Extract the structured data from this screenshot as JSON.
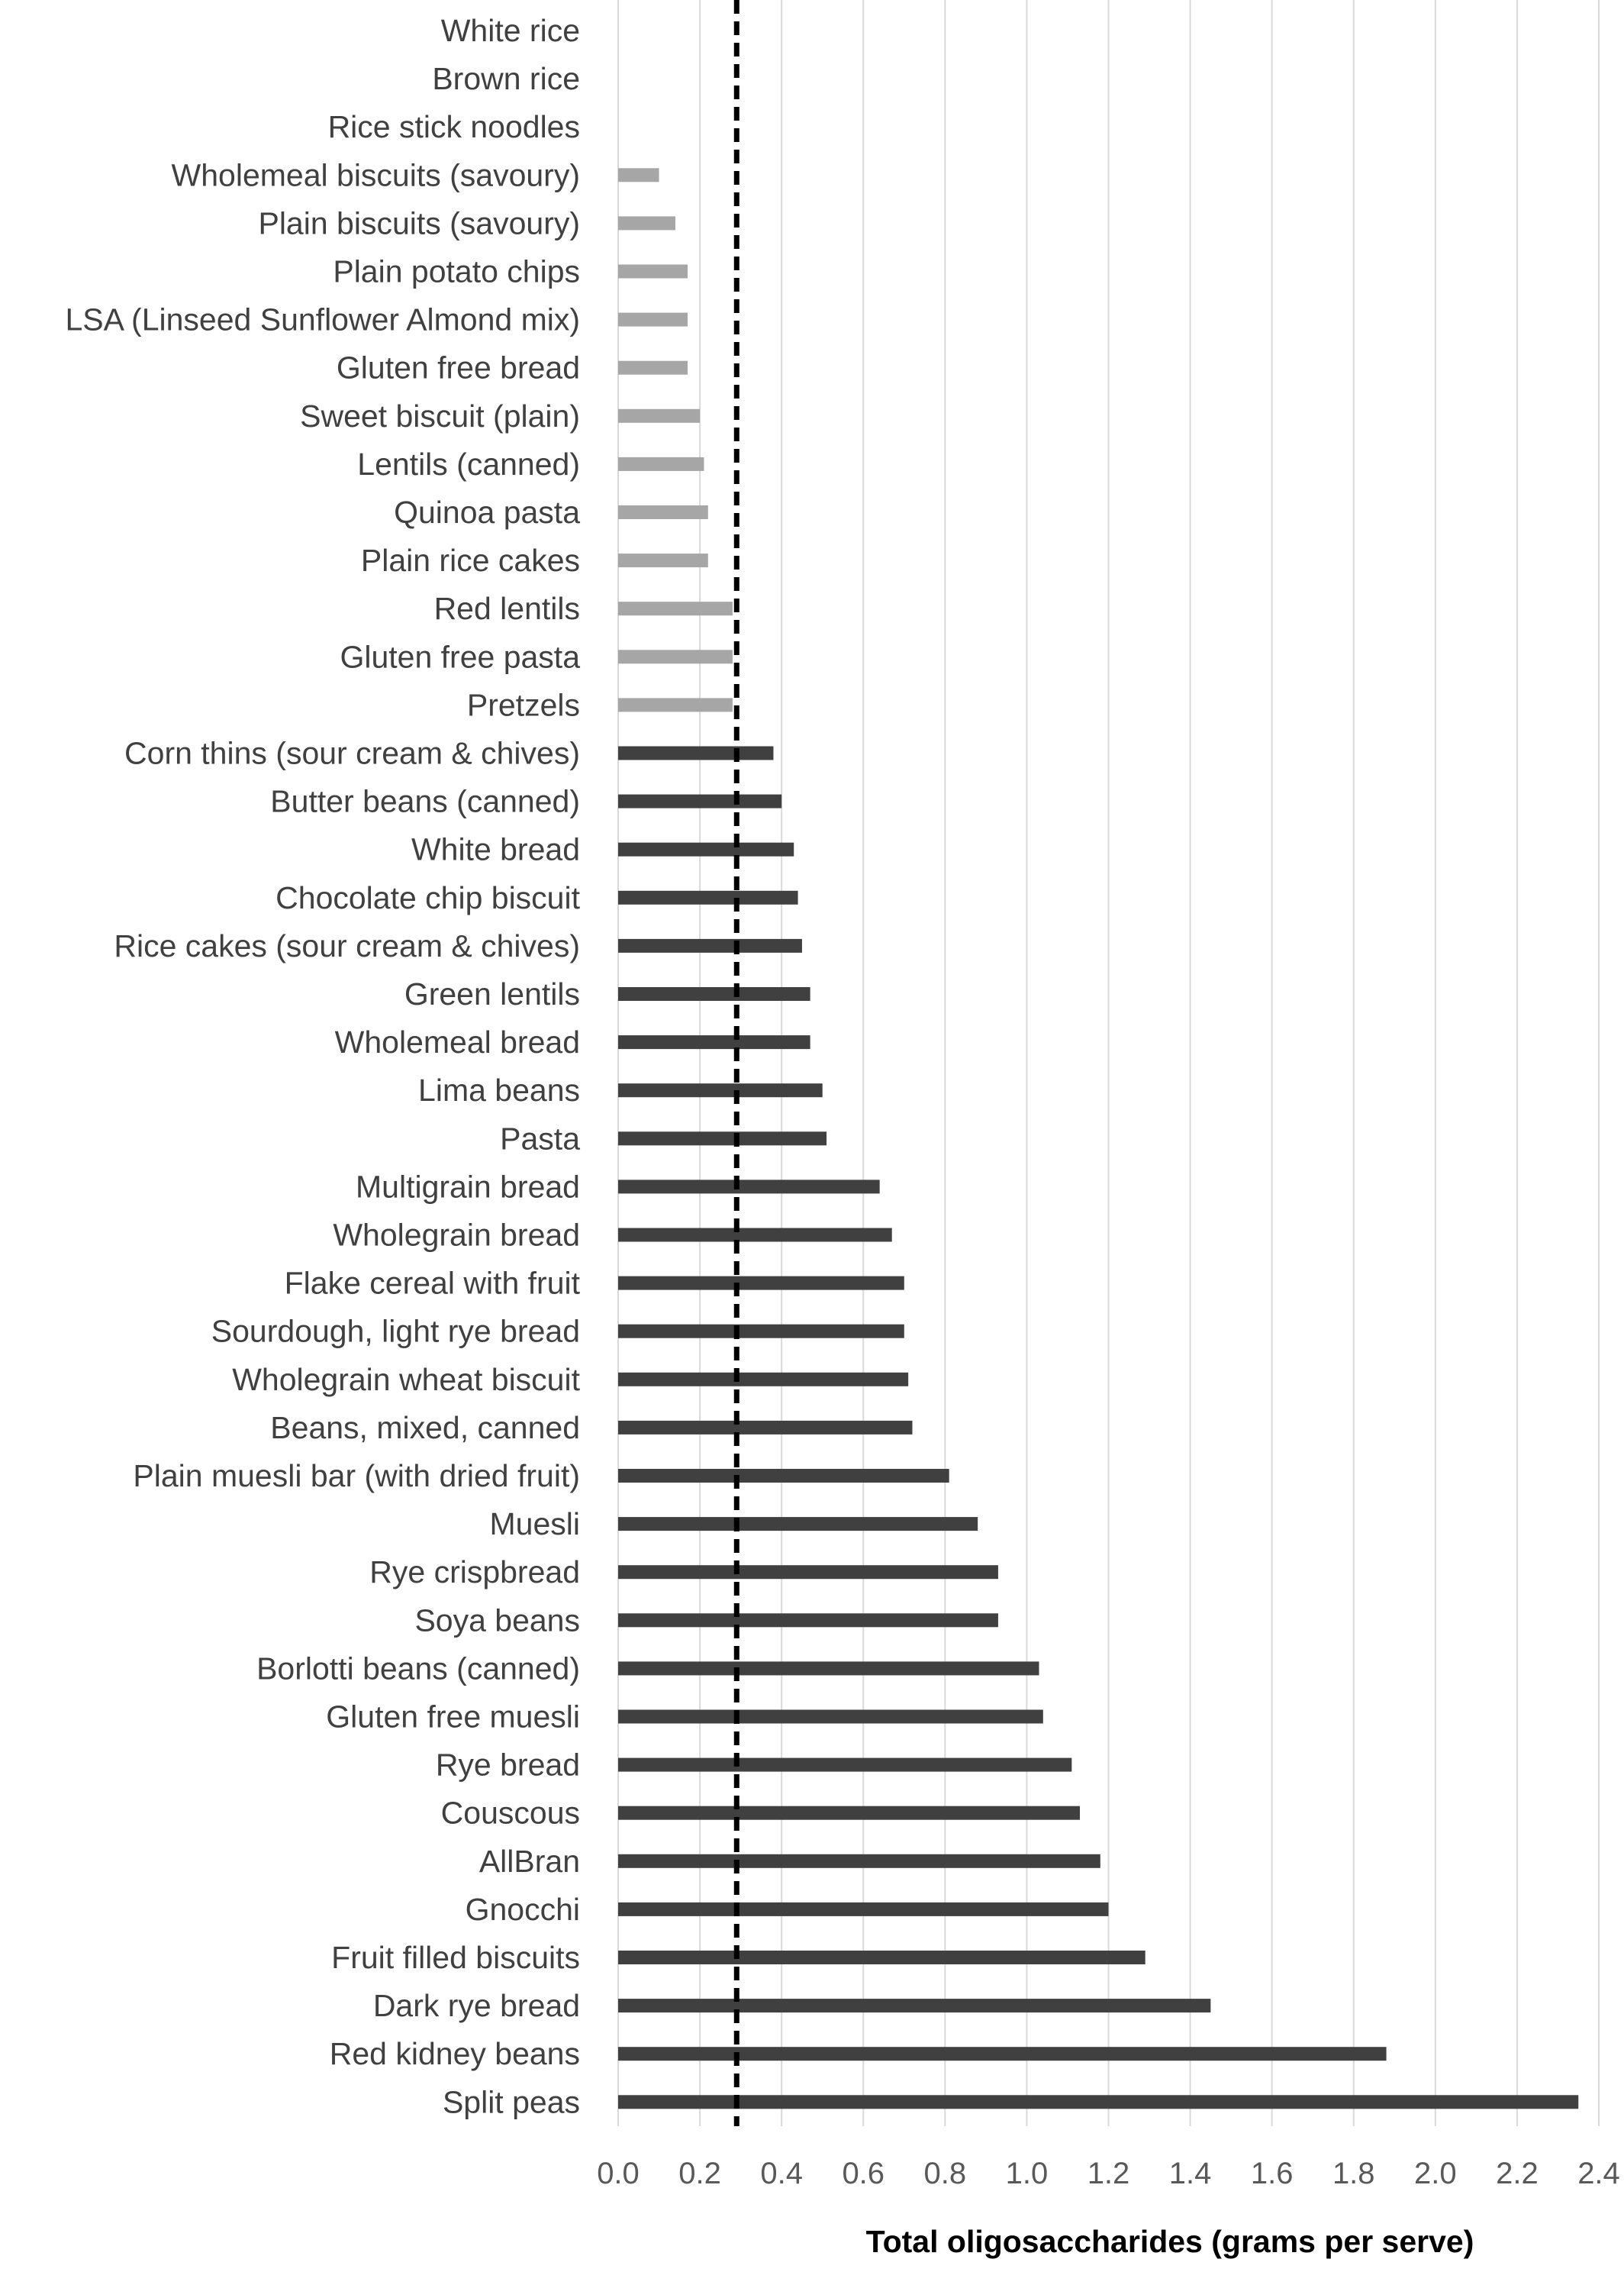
{
  "chart_data": {
    "type": "bar",
    "orientation": "horizontal",
    "title": "",
    "xlabel": "Total oligosaccharides (grams per serve)",
    "ylabel": "",
    "xlim": [
      0,
      2.4
    ],
    "xticks": [
      0.0,
      0.2,
      0.4,
      0.6,
      0.8,
      1.0,
      1.2,
      1.4,
      1.6,
      1.8,
      2.0,
      2.2,
      2.4
    ],
    "xtick_labels": [
      "0.0",
      "0.2",
      "0.4",
      "0.6",
      "0.8",
      "1.0",
      "1.2",
      "1.4",
      "1.6",
      "1.8",
      "2.0",
      "2.2",
      "2.4"
    ],
    "grid": true,
    "threshold": 0.29,
    "colors": {
      "below_threshold": "#a6a6a6",
      "above_threshold": "#404040",
      "threshold_line": "#000000",
      "grid": "#d9d9d9"
    },
    "categories": [
      "White rice",
      "Brown rice",
      "Rice stick noodles",
      "Wholemeal biscuits (savoury)",
      "Plain biscuits (savoury)",
      "Plain potato chips",
      "LSA (Linseed Sunflower Almond mix)",
      "Gluten free bread",
      "Sweet biscuit (plain)",
      "Lentils (canned)",
      "Quinoa pasta",
      "Plain rice cakes",
      "Red lentils",
      "Gluten free pasta",
      "Pretzels",
      "Corn thins (sour cream & chives)",
      "Butter beans (canned)",
      "White bread",
      "Chocolate chip biscuit",
      "Rice cakes (sour cream & chives)",
      "Green lentils",
      "Wholemeal bread",
      "Lima beans",
      "Pasta",
      "Multigrain bread",
      "Wholegrain bread",
      "Flake cereal with fruit",
      "Sourdough, light rye bread",
      "Wholegrain wheat biscuit",
      "Beans, mixed, canned",
      "Plain muesli bar (with dried fruit)",
      "Muesli",
      "Rye crispbread",
      "Soya beans",
      "Borlotti beans (canned)",
      "Gluten free muesli",
      "Rye bread",
      "Couscous",
      "AllBran",
      "Gnocchi",
      "Fruit filled biscuits",
      "Dark rye bread",
      "Red kidney beans",
      "Split peas"
    ],
    "values": [
      0.0,
      0.0,
      0.0,
      0.1,
      0.14,
      0.17,
      0.17,
      0.17,
      0.2,
      0.21,
      0.22,
      0.22,
      0.28,
      0.28,
      0.28,
      0.38,
      0.4,
      0.43,
      0.44,
      0.45,
      0.47,
      0.47,
      0.5,
      0.51,
      0.64,
      0.67,
      0.7,
      0.7,
      0.71,
      0.72,
      0.81,
      0.88,
      0.93,
      0.93,
      1.03,
      1.04,
      1.11,
      1.13,
      1.18,
      1.2,
      1.29,
      1.45,
      1.88,
      2.35
    ]
  }
}
